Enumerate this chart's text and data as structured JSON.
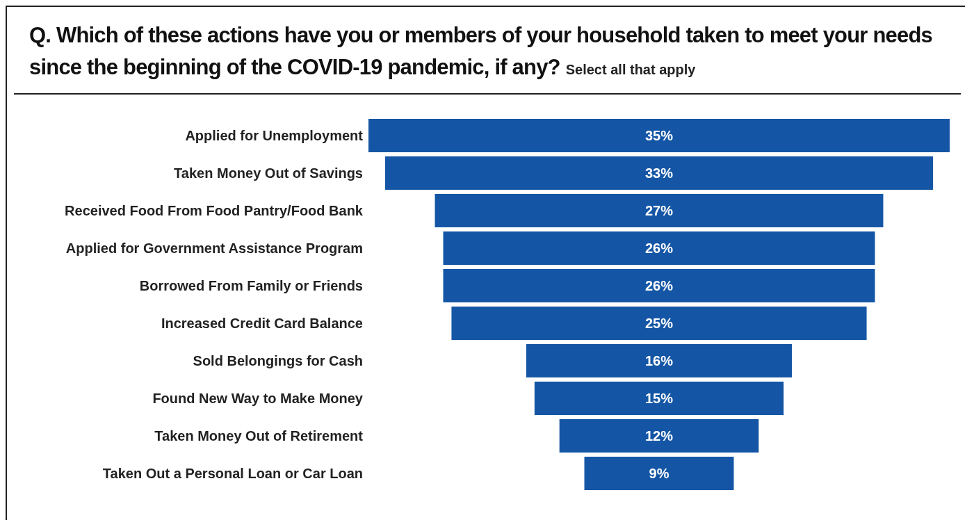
{
  "chart_data": {
    "type": "other",
    "title": "Q. Which of these actions have you or members of your household taken to meet your needs since the beginning of the COVID-19 pandemic, if any?",
    "subtitle": "Select all that apply",
    "categories": [
      "Applied for Unemployment",
      "Taken Money Out of Savings",
      "Received Food From Food Pantry/Food Bank",
      "Applied for Government Assistance Program",
      "Borrowed From Family or Friends",
      "Increased Credit Card Balance",
      "Sold Belongings for Cash",
      "Found New Way to Make Money",
      "Taken Money Out of Retirement",
      "Taken Out a Personal Loan or Car Loan"
    ],
    "values": [
      35,
      33,
      27,
      26,
      26,
      25,
      16,
      15,
      12,
      9
    ],
    "value_labels": [
      "35%",
      "33%",
      "27%",
      "26%",
      "26%",
      "25%",
      "16%",
      "15%",
      "12%",
      "9%"
    ],
    "color": "#1456a5"
  }
}
